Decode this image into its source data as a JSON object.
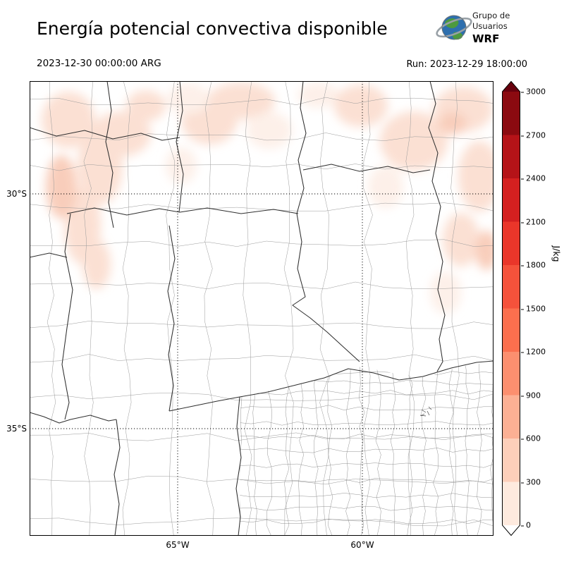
{
  "header": {
    "title": "Energía potencial convectiva disponible",
    "logo": {
      "line1": "Grupo de",
      "line2": "Usuarios",
      "line3": "WRF"
    }
  },
  "times": {
    "valid": "2023-12-30 00:00:00 ARG",
    "run": "Run: 2023-12-29 18:00:00"
  },
  "map": {
    "lat_labels": [
      "30°S",
      "35°S"
    ],
    "lon_labels": [
      "65°W",
      "60°W"
    ]
  },
  "colorbar": {
    "unit_label": "J/kg",
    "ticks": [
      "3000",
      "2700",
      "2400",
      "2100",
      "1800",
      "1500",
      "1200",
      "900",
      "600",
      "300",
      "0"
    ],
    "segment_colors_top_to_bottom": [
      "#8b0a10",
      "#b51318",
      "#d42020",
      "#ea362a",
      "#f5523b",
      "#fb6f4e",
      "#fc8f6f",
      "#fcb094",
      "#fdcfba",
      "#feeade"
    ],
    "arrow_top_color": "#67000d",
    "arrow_bottom_color": "#ffffff",
    "shading_colors": [
      "#fdeee6",
      "#fbdccd",
      "#f8c7b2"
    ]
  },
  "chart_data": {
    "type": "heatmap",
    "title": "Energía potencial convectiva disponible",
    "valid_time": "2023-12-30 00:00:00 ARG",
    "run_time": "Run: 2023-12-29 18:00:00",
    "unit": "J/kg",
    "levels": [
      0,
      300,
      600,
      900,
      1200,
      1500,
      1800,
      2100,
      2400,
      2700,
      3000
    ],
    "lat_ticks": [
      "30°S",
      "35°S"
    ],
    "lon_ticks": [
      "65°W",
      "60°W"
    ],
    "notes": "Light CAPE shading (0-600 J/kg) over the northwest, north-center and northeast of the domain; rest of map near 0"
  }
}
